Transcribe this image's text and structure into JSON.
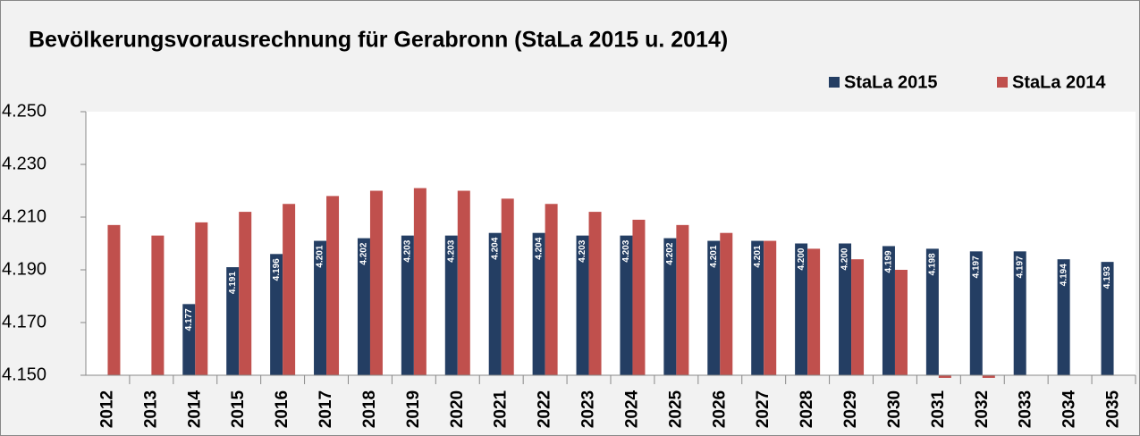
{
  "chart_data": {
    "type": "bar",
    "title": "Bevölkerungsvorausrechnung für Gerabronn (StaLa 2015 u. 2014)",
    "categories": [
      "2012",
      "2013",
      "2014",
      "2015",
      "2016",
      "2017",
      "2018",
      "2019",
      "2020",
      "2021",
      "2022",
      "2023",
      "2024",
      "2025",
      "2026",
      "2027",
      "2028",
      "2029",
      "2030",
      "2031",
      "2032",
      "2033",
      "2034",
      "2035"
    ],
    "series": [
      {
        "name": "StaLa 2015",
        "color": "#243e63",
        "values": [
          null,
          null,
          4177,
          4191,
          4196,
          4201,
          4202,
          4203,
          4203,
          4204,
          4204,
          4203,
          4203,
          4202,
          4201,
          4201,
          4200,
          4200,
          4199,
          4198,
          4197,
          4197,
          4194,
          4193
        ],
        "value_labels": [
          null,
          null,
          "4.177",
          "4.191",
          "4.196",
          "4.201",
          "4.202",
          "4.203",
          "4.203",
          "4.204",
          "4.204",
          "4.203",
          "4.203",
          "4.202",
          "4.201",
          "4.201",
          "4.200",
          "4.200",
          "4.199",
          "4.198",
          "4.197",
          "4.197",
          "4.194",
          "4.193"
        ]
      },
      {
        "name": "StaLa 2014",
        "color": "#c0504d",
        "values": [
          4207,
          4203,
          4208,
          4212,
          4215,
          4218,
          4220,
          4221,
          4220,
          4217,
          4215,
          4212,
          4209,
          4207,
          4204,
          4201,
          4198,
          4194,
          4190,
          4149,
          4149,
          null,
          null,
          null
        ]
      }
    ],
    "ylim": [
      4150,
      4250
    ],
    "yticks": [
      {
        "value": 4150,
        "label": "4.150"
      },
      {
        "value": 4170,
        "label": "4.170"
      },
      {
        "value": 4190,
        "label": "4.190"
      },
      {
        "value": 4210,
        "label": "4.210"
      },
      {
        "value": 4230,
        "label": "4.230"
      },
      {
        "value": 4250,
        "label": "4.250"
      }
    ],
    "legend": "top-right",
    "grid": false
  }
}
